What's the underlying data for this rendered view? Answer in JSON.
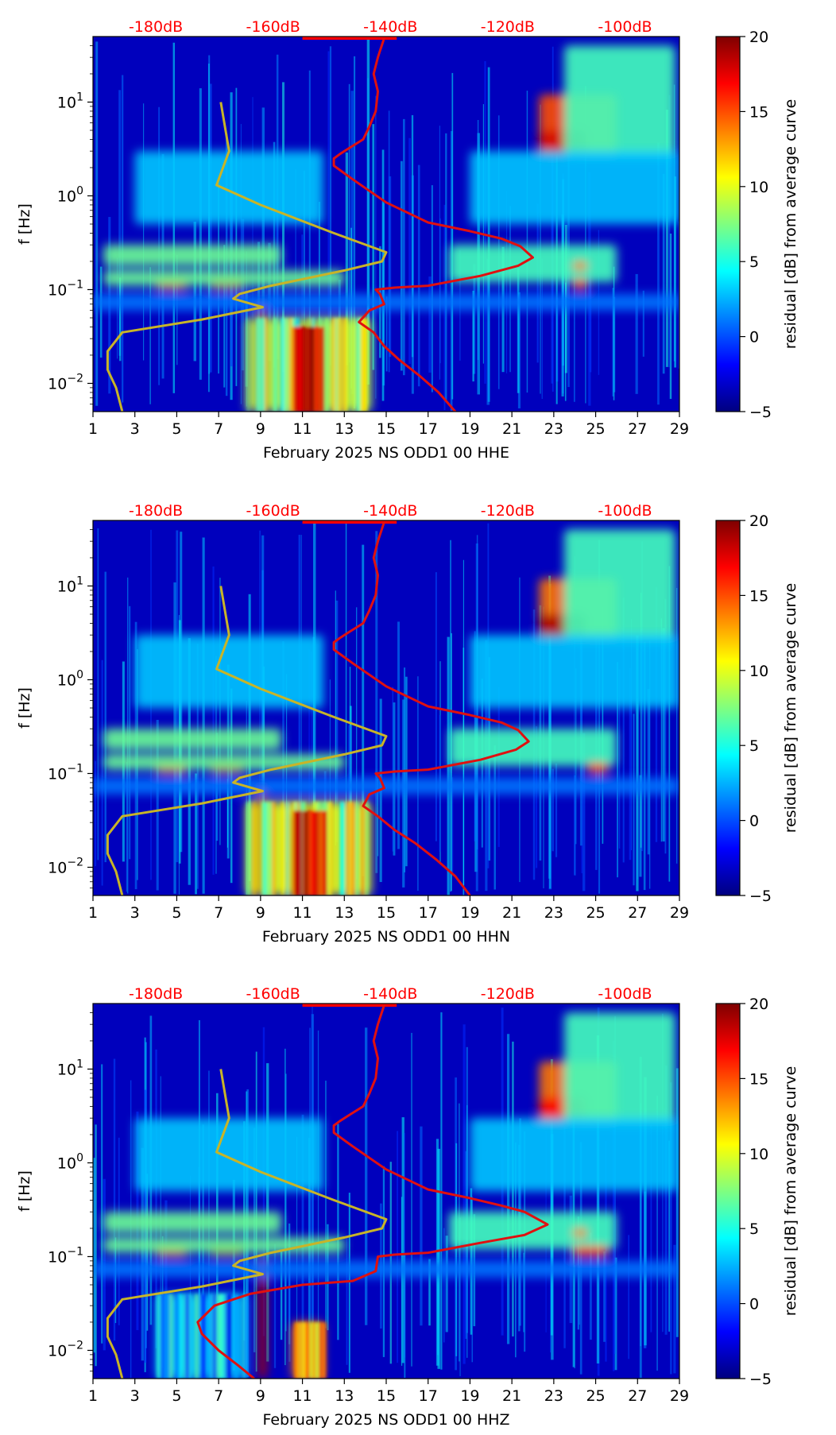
{
  "colors": {
    "top_db_axis": "#ff0000",
    "median_curve": "#e01010",
    "noise_model": "#c8b428"
  },
  "chart_data": [
    {
      "type": "heatmap",
      "xlabel": "February 2025 NS ODD1 00 HHE",
      "ylabel": "f [Hz]",
      "x_ticks": [
        "1",
        "3",
        "5",
        "7",
        "9",
        "11",
        "13",
        "15",
        "17",
        "19",
        "21",
        "23",
        "25",
        "27",
        "29"
      ],
      "xlim": [
        1,
        29
      ],
      "y_scale": "log",
      "ylim": [
        0.005,
        50
      ],
      "y_ticks": [
        {
          "label": "10",
          "exp": "−2",
          "value": 0.01
        },
        {
          "label": "10",
          "exp": "−1",
          "value": 0.1
        },
        {
          "label": "10",
          "exp": "0",
          "value": 1
        },
        {
          "label": "10",
          "exp": "1",
          "value": 10
        }
      ],
      "top_ticks": [
        {
          "label": "-180dB",
          "x": 4
        },
        {
          "label": "-160dB",
          "x": 9.6
        },
        {
          "label": "-140dB",
          "x": 15.2
        },
        {
          "label": "-120dB",
          "x": 20.8
        },
        {
          "label": "-100dB",
          "x": 26.4
        }
      ],
      "colorbar": {
        "label": "residual [dB] from average curve",
        "min": -5,
        "max": 20,
        "ticks": [
          "−5",
          "0",
          "5",
          "10",
          "15",
          "20"
        ],
        "tick_values": [
          -5,
          0,
          5,
          10,
          15,
          20
        ]
      },
      "noise_model": {
        "x": [
          7.1,
          7.5,
          6.9,
          9.0,
          12.5,
          15.0,
          14.8,
          13.0,
          9.5,
          8.0,
          7.7,
          9.1,
          6.2,
          2.4,
          1.7,
          1.7,
          2.1,
          2.4
        ],
        "y": [
          10,
          3.0,
          1.3,
          0.8,
          0.4,
          0.25,
          0.2,
          0.16,
          0.11,
          0.09,
          0.08,
          0.065,
          0.048,
          0.035,
          0.022,
          0.014,
          0.009,
          0.005
        ]
      },
      "median_curve": {
        "x": [
          14.9,
          14.6,
          14.4,
          14.6,
          14.5,
          14.2,
          13.9,
          13.2,
          12.8,
          12.5,
          12.5,
          13.4,
          15.0,
          17.0,
          19.0,
          20.5,
          21.4,
          22.0,
          21.3,
          19.5,
          17.0,
          15.4,
          14.5,
          14.7,
          14.9,
          14.2,
          13.7,
          14.4,
          14.9,
          15.6,
          16.6,
          17.5,
          18.3
        ],
        "y": [
          48,
          30,
          20,
          13,
          8,
          5.5,
          4.0,
          3.2,
          2.8,
          2.5,
          2.1,
          1.5,
          0.85,
          0.52,
          0.42,
          0.35,
          0.29,
          0.22,
          0.18,
          0.14,
          0.11,
          0.105,
          0.1,
          0.09,
          0.07,
          0.06,
          0.045,
          0.035,
          0.025,
          0.018,
          0.012,
          0.008,
          0.005
        ]
      },
      "features": [
        {
          "x0": 22.3,
          "x1": 26.0,
          "y0": 2.6,
          "y1": 12.0,
          "level": 15
        },
        {
          "x0": 22.3,
          "x1": 24.5,
          "y0": 2.8,
          "y1": 5.0,
          "level": 18
        },
        {
          "x0": 23.5,
          "x1": 28.8,
          "y0": 2.5,
          "y1": 40.0,
          "level": 6
        },
        {
          "x0": 4.0,
          "x1": 5.5,
          "y0": 0.1,
          "y1": 0.14,
          "level": 17
        },
        {
          "x0": 6.6,
          "x1": 8.2,
          "y0": 0.1,
          "y1": 0.14,
          "level": 18
        },
        {
          "x0": 1.5,
          "x1": 10.0,
          "y0": 0.18,
          "y1": 0.3,
          "level": 7
        },
        {
          "x0": 1.5,
          "x1": 13.0,
          "y0": 0.11,
          "y1": 0.16,
          "level": 7
        },
        {
          "x0": 3.0,
          "x1": 12.0,
          "y0": 0.5,
          "y1": 3.0,
          "level": 3
        },
        {
          "x0": 19.0,
          "x1": 29.0,
          "y0": 0.5,
          "y1": 3.0,
          "level": 3
        },
        {
          "x0": 18.0,
          "x1": 26.0,
          "y0": 0.12,
          "y1": 0.3,
          "level": 6
        },
        {
          "x0": 23.9,
          "x1": 24.6,
          "y0": 0.16,
          "y1": 0.2,
          "level": 14
        },
        {
          "x0": 23.9,
          "x1": 24.6,
          "y0": 0.1,
          "y1": 0.13,
          "level": 15
        },
        {
          "x0": 8.3,
          "x1": 14.3,
          "y0": 0.005,
          "y1": 0.05,
          "level": 9
        },
        {
          "x0": 10.5,
          "x1": 12.0,
          "y0": 0.005,
          "y1": 0.04,
          "level": 19
        },
        {
          "x0": 8.9,
          "x1": 9.2,
          "y0": 0.005,
          "y1": 0.08,
          "level": 18
        },
        {
          "x0": 1.0,
          "x1": 29.0,
          "y0": 0.06,
          "y1": 0.09,
          "level": 1
        }
      ]
    },
    {
      "type": "heatmap",
      "xlabel": "February 2025 NS ODD1 00 HHN",
      "ylabel": "f [Hz]",
      "x_ticks": [
        "1",
        "3",
        "5",
        "7",
        "9",
        "11",
        "13",
        "15",
        "17",
        "19",
        "21",
        "23",
        "25",
        "27",
        "29"
      ],
      "xlim": [
        1,
        29
      ],
      "y_scale": "log",
      "ylim": [
        0.005,
        50
      ],
      "y_ticks": [
        {
          "label": "10",
          "exp": "−2",
          "value": 0.01
        },
        {
          "label": "10",
          "exp": "−1",
          "value": 0.1
        },
        {
          "label": "10",
          "exp": "0",
          "value": 1
        },
        {
          "label": "10",
          "exp": "1",
          "value": 10
        }
      ],
      "top_ticks": [
        {
          "label": "-180dB",
          "x": 4
        },
        {
          "label": "-160dB",
          "x": 9.6
        },
        {
          "label": "-140dB",
          "x": 15.2
        },
        {
          "label": "-120dB",
          "x": 20.8
        },
        {
          "label": "-100dB",
          "x": 26.4
        }
      ],
      "colorbar": {
        "label": "residual [dB] from average curve",
        "min": -5,
        "max": 20,
        "ticks": [
          "−5",
          "0",
          "5",
          "10",
          "15",
          "20"
        ],
        "tick_values": [
          -5,
          0,
          5,
          10,
          15,
          20
        ]
      },
      "noise_model": {
        "x": [
          7.1,
          7.5,
          6.9,
          9.0,
          12.5,
          15.0,
          14.8,
          13.0,
          9.5,
          8.0,
          7.7,
          9.1,
          6.2,
          2.4,
          1.7,
          1.7,
          2.1,
          2.4
        ],
        "y": [
          10,
          3.0,
          1.3,
          0.8,
          0.4,
          0.25,
          0.2,
          0.16,
          0.11,
          0.09,
          0.08,
          0.065,
          0.048,
          0.035,
          0.022,
          0.014,
          0.009,
          0.005
        ]
      },
      "median_curve": {
        "x": [
          14.9,
          14.6,
          14.4,
          14.6,
          14.5,
          14.2,
          13.9,
          13.2,
          12.8,
          12.5,
          12.5,
          13.4,
          15.0,
          17.0,
          19.0,
          20.5,
          21.3,
          21.8,
          21.2,
          19.5,
          17.0,
          15.4,
          14.5,
          14.7,
          14.9,
          14.2,
          13.9,
          14.6,
          15.4,
          16.4,
          17.4,
          18.3,
          19.0
        ],
        "y": [
          48,
          30,
          20,
          13,
          8,
          5.5,
          4.0,
          3.2,
          2.8,
          2.5,
          2.1,
          1.5,
          0.85,
          0.52,
          0.42,
          0.35,
          0.29,
          0.22,
          0.18,
          0.14,
          0.11,
          0.105,
          0.1,
          0.09,
          0.07,
          0.06,
          0.045,
          0.035,
          0.025,
          0.018,
          0.012,
          0.008,
          0.005
        ]
      },
      "features": [
        {
          "x0": 22.3,
          "x1": 26.0,
          "y0": 2.6,
          "y1": 12.0,
          "level": 14
        },
        {
          "x0": 22.3,
          "x1": 24.5,
          "y0": 2.8,
          "y1": 5.0,
          "level": 19
        },
        {
          "x0": 23.5,
          "x1": 28.8,
          "y0": 2.5,
          "y1": 40.0,
          "level": 6
        },
        {
          "x0": 4.0,
          "x1": 5.5,
          "y0": 0.1,
          "y1": 0.14,
          "level": 17
        },
        {
          "x0": 6.6,
          "x1": 8.2,
          "y0": 0.1,
          "y1": 0.14,
          "level": 18
        },
        {
          "x0": 1.5,
          "x1": 10.0,
          "y0": 0.18,
          "y1": 0.3,
          "level": 7
        },
        {
          "x0": 1.5,
          "x1": 13.0,
          "y0": 0.11,
          "y1": 0.16,
          "level": 7
        },
        {
          "x0": 3.0,
          "x1": 12.0,
          "y0": 0.5,
          "y1": 3.0,
          "level": 3
        },
        {
          "x0": 19.0,
          "x1": 29.0,
          "y0": 0.5,
          "y1": 3.0,
          "level": 3
        },
        {
          "x0": 18.0,
          "x1": 26.0,
          "y0": 0.12,
          "y1": 0.3,
          "level": 6
        },
        {
          "x0": 24.6,
          "x1": 25.6,
          "y0": 0.1,
          "y1": 0.13,
          "level": 15
        },
        {
          "x0": 8.3,
          "x1": 14.3,
          "y0": 0.005,
          "y1": 0.05,
          "level": 10
        },
        {
          "x0": 10.5,
          "x1": 12.0,
          "y0": 0.005,
          "y1": 0.04,
          "level": 19
        },
        {
          "x0": 8.9,
          "x1": 9.2,
          "y0": 0.005,
          "y1": 0.08,
          "level": 18
        },
        {
          "x0": 1.0,
          "x1": 29.0,
          "y0": 0.06,
          "y1": 0.09,
          "level": 1
        }
      ]
    },
    {
      "type": "heatmap",
      "xlabel": "February 2025 NS ODD1 00 HHZ",
      "ylabel": "f [Hz]",
      "x_ticks": [
        "1",
        "3",
        "5",
        "7",
        "9",
        "11",
        "13",
        "15",
        "17",
        "19",
        "21",
        "23",
        "25",
        "27",
        "29"
      ],
      "xlim": [
        1,
        29
      ],
      "y_scale": "log",
      "ylim": [
        0.005,
        50
      ],
      "y_ticks": [
        {
          "label": "10",
          "exp": "−2",
          "value": 0.01
        },
        {
          "label": "10",
          "exp": "−1",
          "value": 0.1
        },
        {
          "label": "10",
          "exp": "0",
          "value": 1
        },
        {
          "label": "10",
          "exp": "1",
          "value": 10
        }
      ],
      "top_ticks": [
        {
          "label": "-180dB",
          "x": 4
        },
        {
          "label": "-160dB",
          "x": 9.6
        },
        {
          "label": "-140dB",
          "x": 15.2
        },
        {
          "label": "-120dB",
          "x": 20.8
        },
        {
          "label": "-100dB",
          "x": 26.4
        }
      ],
      "colorbar": {
        "label": "residual [dB] from average curve",
        "min": -5,
        "max": 20,
        "ticks": [
          "−5",
          "0",
          "5",
          "10",
          "15",
          "20"
        ],
        "tick_values": [
          -5,
          0,
          5,
          10,
          15,
          20
        ]
      },
      "noise_model": {
        "x": [
          7.1,
          7.5,
          6.9,
          9.0,
          12.5,
          15.0,
          14.8,
          13.0,
          9.5,
          8.0,
          7.7,
          9.1,
          6.2,
          2.4,
          1.7,
          1.7,
          2.1,
          2.4
        ],
        "y": [
          10,
          3.0,
          1.3,
          0.8,
          0.4,
          0.25,
          0.2,
          0.16,
          0.11,
          0.09,
          0.08,
          0.065,
          0.048,
          0.035,
          0.022,
          0.014,
          0.009,
          0.005
        ]
      },
      "median_curve": {
        "x": [
          14.9,
          14.6,
          14.4,
          14.6,
          14.5,
          14.2,
          13.9,
          13.2,
          12.8,
          12.5,
          12.5,
          13.4,
          15.0,
          17.0,
          19.0,
          20.5,
          21.6,
          22.7,
          21.6,
          19.5,
          17.0,
          15.4,
          14.6,
          14.5,
          13.4,
          11.0,
          8.5,
          6.8,
          6.0,
          6.2,
          7.0,
          7.9,
          8.7
        ],
        "y": [
          48,
          30,
          20,
          13,
          8,
          5.5,
          4.0,
          3.2,
          2.8,
          2.5,
          2.1,
          1.5,
          0.85,
          0.52,
          0.42,
          0.35,
          0.3,
          0.22,
          0.17,
          0.14,
          0.11,
          0.105,
          0.1,
          0.07,
          0.055,
          0.05,
          0.04,
          0.03,
          0.02,
          0.015,
          0.01,
          0.007,
          0.005
        ]
      },
      "features": [
        {
          "x0": 22.3,
          "x1": 26.0,
          "y0": 2.6,
          "y1": 12.0,
          "level": 14
        },
        {
          "x0": 22.3,
          "x1": 24.5,
          "y0": 2.8,
          "y1": 5.0,
          "level": 17
        },
        {
          "x0": 23.5,
          "x1": 28.8,
          "y0": 2.5,
          "y1": 40.0,
          "level": 6
        },
        {
          "x0": 4.0,
          "x1": 5.5,
          "y0": 0.1,
          "y1": 0.14,
          "level": 17
        },
        {
          "x0": 6.6,
          "x1": 8.2,
          "y0": 0.1,
          "y1": 0.14,
          "level": 19
        },
        {
          "x0": 1.5,
          "x1": 10.0,
          "y0": 0.18,
          "y1": 0.3,
          "level": 7
        },
        {
          "x0": 1.5,
          "x1": 13.0,
          "y0": 0.11,
          "y1": 0.16,
          "level": 7
        },
        {
          "x0": 3.0,
          "x1": 12.0,
          "y0": 0.5,
          "y1": 3.0,
          "level": 3
        },
        {
          "x0": 19.0,
          "x1": 29.0,
          "y0": 0.5,
          "y1": 3.0,
          "level": 3
        },
        {
          "x0": 18.0,
          "x1": 26.0,
          "y0": 0.12,
          "y1": 0.3,
          "level": 6
        },
        {
          "x0": 23.9,
          "x1": 24.6,
          "y0": 0.16,
          "y1": 0.2,
          "level": 14
        },
        {
          "x0": 23.9,
          "x1": 25.6,
          "y0": 0.1,
          "y1": 0.13,
          "level": 15
        },
        {
          "x0": 4.0,
          "x1": 8.3,
          "y0": 0.005,
          "y1": 0.04,
          "level": 3
        },
        {
          "x0": 10.5,
          "x1": 12.0,
          "y0": 0.005,
          "y1": 0.02,
          "level": 14
        },
        {
          "x0": 8.9,
          "x1": 9.3,
          "y0": 0.005,
          "y1": 0.1,
          "level": 19
        },
        {
          "x0": 1.0,
          "x1": 29.0,
          "y0": 0.06,
          "y1": 0.09,
          "level": 1
        }
      ]
    }
  ]
}
